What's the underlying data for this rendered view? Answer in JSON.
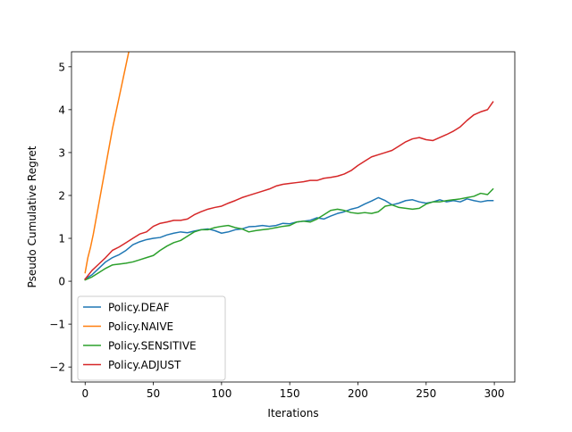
{
  "chart_data": {
    "type": "line",
    "title": "",
    "xlabel": "Iterations",
    "ylabel": "Pseudo Cumulative Regret",
    "xlim": [
      -10,
      315
    ],
    "ylim": [
      -2.35,
      5.35
    ],
    "xticks": [
      0,
      50,
      100,
      150,
      200,
      250,
      300
    ],
    "yticks": [
      -2,
      -1,
      0,
      1,
      2,
      3,
      4,
      5
    ],
    "ytick_labels": [
      "−2",
      "−1",
      "0",
      "1",
      "2",
      "3",
      "4",
      "5"
    ],
    "grid": false,
    "legend": {
      "placement": "lower-left"
    },
    "series": [
      {
        "name": "Policy.DEAF",
        "color": "#1f77b4",
        "x": [
          0,
          5,
          10,
          15,
          20,
          25,
          30,
          35,
          40,
          45,
          50,
          55,
          60,
          65,
          70,
          75,
          80,
          85,
          90,
          95,
          100,
          105,
          110,
          115,
          120,
          125,
          130,
          135,
          140,
          145,
          150,
          155,
          160,
          165,
          170,
          175,
          180,
          185,
          190,
          195,
          200,
          205,
          210,
          215,
          220,
          225,
          230,
          235,
          240,
          245,
          250,
          255,
          260,
          265,
          270,
          275,
          280,
          285,
          290,
          295,
          299
        ],
        "y": [
          0.05,
          0.15,
          0.3,
          0.45,
          0.55,
          0.62,
          0.72,
          0.85,
          0.92,
          0.97,
          1.0,
          1.02,
          1.08,
          1.12,
          1.15,
          1.13,
          1.17,
          1.2,
          1.22,
          1.18,
          1.12,
          1.15,
          1.2,
          1.22,
          1.27,
          1.28,
          1.3,
          1.28,
          1.3,
          1.35,
          1.34,
          1.38,
          1.4,
          1.42,
          1.48,
          1.45,
          1.52,
          1.58,
          1.62,
          1.68,
          1.72,
          1.8,
          1.87,
          1.95,
          1.88,
          1.78,
          1.82,
          1.88,
          1.9,
          1.85,
          1.82,
          1.85,
          1.9,
          1.85,
          1.88,
          1.85,
          1.92,
          1.88,
          1.85,
          1.88,
          1.88
        ]
      },
      {
        "name": "Policy.NAIVE",
        "color": "#ff7f0e",
        "x": [
          0,
          2,
          4,
          6,
          8,
          10,
          12,
          14,
          16,
          18,
          20,
          22,
          24,
          26,
          28,
          30,
          32,
          34
        ],
        "y": [
          0.2,
          0.55,
          0.8,
          1.1,
          1.45,
          1.8,
          2.15,
          2.5,
          2.85,
          3.2,
          3.55,
          3.85,
          4.15,
          4.45,
          4.75,
          5.05,
          5.35,
          5.65
        ]
      },
      {
        "name": "Policy.SENSITIVE",
        "color": "#2ca02c",
        "x": [
          0,
          5,
          10,
          15,
          20,
          25,
          30,
          35,
          40,
          45,
          50,
          55,
          60,
          65,
          70,
          75,
          80,
          85,
          90,
          95,
          100,
          105,
          110,
          115,
          120,
          125,
          130,
          135,
          140,
          145,
          150,
          155,
          160,
          165,
          170,
          175,
          180,
          185,
          190,
          195,
          200,
          205,
          210,
          215,
          220,
          225,
          230,
          235,
          240,
          245,
          250,
          255,
          260,
          265,
          270,
          275,
          280,
          285,
          290,
          295,
          299
        ],
        "y": [
          0.03,
          0.1,
          0.2,
          0.3,
          0.38,
          0.4,
          0.42,
          0.45,
          0.5,
          0.55,
          0.6,
          0.72,
          0.82,
          0.9,
          0.95,
          1.05,
          1.15,
          1.2,
          1.2,
          1.25,
          1.28,
          1.3,
          1.25,
          1.22,
          1.15,
          1.18,
          1.2,
          1.22,
          1.25,
          1.28,
          1.3,
          1.38,
          1.4,
          1.38,
          1.45,
          1.55,
          1.65,
          1.68,
          1.65,
          1.6,
          1.58,
          1.6,
          1.58,
          1.62,
          1.75,
          1.78,
          1.72,
          1.7,
          1.68,
          1.7,
          1.8,
          1.85,
          1.85,
          1.88,
          1.9,
          1.92,
          1.95,
          1.98,
          2.05,
          2.02,
          2.15
        ]
      },
      {
        "name": "Policy.ADJUST",
        "color": "#d62728",
        "x": [
          0,
          5,
          10,
          15,
          20,
          25,
          30,
          35,
          40,
          45,
          50,
          55,
          60,
          65,
          70,
          75,
          80,
          85,
          90,
          95,
          100,
          105,
          110,
          115,
          120,
          125,
          130,
          135,
          140,
          145,
          150,
          155,
          160,
          165,
          170,
          175,
          180,
          185,
          190,
          195,
          200,
          205,
          210,
          215,
          220,
          225,
          230,
          235,
          240,
          245,
          250,
          255,
          260,
          265,
          270,
          275,
          280,
          285,
          290,
          295,
          299
        ],
        "y": [
          0.05,
          0.25,
          0.4,
          0.55,
          0.72,
          0.8,
          0.9,
          1.0,
          1.1,
          1.15,
          1.28,
          1.35,
          1.38,
          1.42,
          1.42,
          1.45,
          1.55,
          1.62,
          1.68,
          1.72,
          1.75,
          1.82,
          1.88,
          1.95,
          2.0,
          2.05,
          2.1,
          2.15,
          2.22,
          2.26,
          2.28,
          2.3,
          2.32,
          2.35,
          2.35,
          2.4,
          2.42,
          2.45,
          2.5,
          2.58,
          2.7,
          2.8,
          2.9,
          2.95,
          3.0,
          3.05,
          3.15,
          3.25,
          3.32,
          3.35,
          3.3,
          3.28,
          3.35,
          3.42,
          3.5,
          3.6,
          3.75,
          3.88,
          3.95,
          4.0,
          4.18
        ]
      }
    ]
  }
}
